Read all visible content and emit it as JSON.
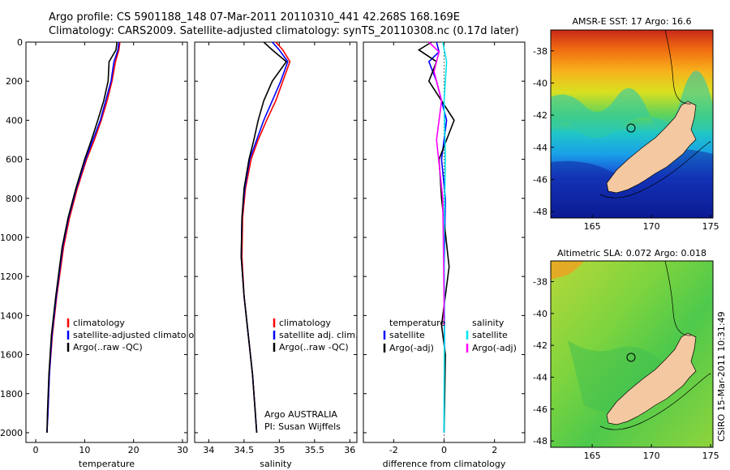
{
  "header": {
    "line1": "Argo profile: CS 5901188_148 07-Mar-2011 20110310_441 42.268S 168.169E",
    "line2": "Climatology: CARS2009. Satellite-adjusted climatology: synTS_20110308.nc (0.17d later)"
  },
  "credit": "CSIRO 15-Mar-2011 10:31:49",
  "chart_data": [
    {
      "id": "temperature",
      "type": "line",
      "xlabel": "temperature",
      "ylabel": "",
      "xlim": [
        -2,
        31
      ],
      "ylim": [
        0,
        2050
      ],
      "y_inverted": true,
      "xticks": [
        "0",
        "10",
        "20",
        "30"
      ],
      "yticks": [
        "0",
        "200",
        "400",
        "600",
        "800",
        "1000",
        "1200",
        "1400",
        "1600",
        "1800",
        "2000"
      ],
      "legend": [
        "climatology",
        "satellite-adjusted climatology",
        "Argo(..raw -QC)"
      ],
      "series": [
        {
          "name": "climatology",
          "color": "#ff0000",
          "x": [
            17.2,
            17.0,
            16.3,
            15.6,
            14.6,
            13.4,
            12.0,
            10.4,
            8.5,
            6.9,
            5.7,
            4.3,
            3.4,
            2.8,
            2.5,
            2.3
          ],
          "y": [
            0,
            40,
            100,
            200,
            300,
            400,
            500,
            600,
            750,
            900,
            1050,
            1300,
            1500,
            1700,
            1900,
            2000
          ]
        },
        {
          "name": "satellite-adjusted climatology",
          "color": "#0000ff",
          "x": [
            17.0,
            16.8,
            16.0,
            15.4,
            14.3,
            13.2,
            11.7,
            10.2,
            8.3,
            6.7,
            5.5,
            4.2,
            3.3,
            2.8,
            2.5,
            2.3
          ],
          "y": [
            0,
            40,
            100,
            200,
            300,
            400,
            500,
            600,
            750,
            900,
            1050,
            1300,
            1500,
            1700,
            1900,
            2000
          ]
        },
        {
          "name": "Argo(..raw -QC)",
          "color": "#000000",
          "x": [
            16.6,
            16.4,
            15.0,
            14.8,
            13.9,
            12.7,
            11.4,
            10.0,
            8.2,
            6.6,
            5.4,
            4.1,
            3.2,
            2.7,
            2.4,
            2.3
          ],
          "y": [
            0,
            40,
            100,
            200,
            300,
            400,
            500,
            600,
            750,
            900,
            1050,
            1300,
            1500,
            1700,
            1900,
            2000
          ]
        }
      ]
    },
    {
      "id": "salinity",
      "type": "line",
      "xlabel": "salinity",
      "ylabel": "",
      "xlim": [
        33.8,
        36.1
      ],
      "ylim": [
        0,
        2050
      ],
      "y_inverted": true,
      "xticks": [
        "34",
        "34.5",
        "35",
        "35.5",
        "36"
      ],
      "legend": [
        "climatology",
        "satellite adj. clim.",
        "Argo(..raw -QC)"
      ],
      "annotation": [
        "Argo AUSTRALIA",
        "PI: Susan Wijffels"
      ],
      "series": [
        {
          "name": "climatology",
          "color": "#ff0000",
          "x": [
            34.95,
            35.05,
            35.15,
            35.05,
            34.95,
            34.82,
            34.7,
            34.6,
            34.52,
            34.48,
            34.47,
            34.5,
            34.56,
            34.62,
            34.66,
            34.68
          ],
          "y": [
            0,
            40,
            100,
            200,
            300,
            400,
            500,
            600,
            750,
            900,
            1100,
            1300,
            1500,
            1700,
            1900,
            2000
          ]
        },
        {
          "name": "satellite adj. clim.",
          "color": "#0000ff",
          "x": [
            34.9,
            35.0,
            35.12,
            35.02,
            34.9,
            34.78,
            34.68,
            34.58,
            34.51,
            34.47,
            34.46,
            34.5,
            34.56,
            34.62,
            34.66,
            34.68
          ],
          "y": [
            0,
            40,
            100,
            200,
            300,
            400,
            500,
            600,
            750,
            900,
            1100,
            1300,
            1500,
            1700,
            1900,
            2000
          ]
        },
        {
          "name": "Argo(..raw -QC)",
          "color": "#000000",
          "x": [
            34.78,
            34.9,
            35.1,
            34.9,
            34.78,
            34.7,
            34.64,
            34.57,
            34.5,
            34.47,
            34.46,
            34.5,
            34.56,
            34.62,
            34.66,
            34.68
          ],
          "y": [
            0,
            40,
            100,
            200,
            300,
            400,
            500,
            600,
            750,
            900,
            1100,
            1300,
            1500,
            1700,
            1900,
            2000
          ]
        }
      ]
    },
    {
      "id": "difference",
      "type": "line",
      "xlabel": "difference from climatology",
      "ylabel": "",
      "xlim": [
        -3.2,
        3.2
      ],
      "ylim": [
        0,
        2050
      ],
      "y_inverted": true,
      "xticks": [
        "-2",
        "0",
        "2"
      ],
      "legend_left_title": "temperature",
      "legend_right_title": "salinity",
      "legend": [
        "satellite",
        "Argo(-adj)",
        "satellite",
        "Argo(-adj)"
      ],
      "series": [
        {
          "name": "satellite",
          "group": "temperature",
          "color": "#0000ff",
          "x": [
            -0.3,
            -0.2,
            -0.6,
            -0.3,
            0.1,
            -0.1,
            0.05,
            0.0,
            0.02,
            0.0
          ],
          "y": [
            0,
            50,
            100,
            200,
            400,
            600,
            800,
            1200,
            1600,
            2000
          ]
        },
        {
          "name": "Argo(-adj)",
          "group": "temperature",
          "color": "#000000",
          "x": [
            -0.5,
            -1.0,
            -0.3,
            -0.6,
            0.4,
            -0.2,
            -0.1,
            0.2,
            -0.1,
            0.05,
            0.0
          ],
          "y": [
            0,
            40,
            100,
            200,
            400,
            600,
            800,
            1150,
            1450,
            1600,
            2000
          ]
        },
        {
          "name": "satellite",
          "group": "salinity",
          "color": "#00e5ee",
          "x": [
            -0.05,
            0.1,
            0.0,
            0.05,
            0.0,
            0.02,
            0.0,
            0.0
          ],
          "y": [
            0,
            100,
            300,
            600,
            1000,
            1400,
            1800,
            2000
          ]
        },
        {
          "name": "Argo(-adj)",
          "group": "salinity",
          "color": "#ff00ff",
          "x": [
            -0.6,
            -0.2,
            -0.4,
            -0.1,
            -0.3,
            -0.05,
            0.0,
            0.0
          ],
          "y": [
            0,
            50,
            150,
            300,
            500,
            800,
            1300,
            1450
          ]
        }
      ]
    },
    {
      "id": "sst_map",
      "type": "heatmap",
      "title": "AMSR-E SST: 17 Argo: 16.6",
      "xticks": [
        "165",
        "170",
        "175"
      ],
      "yticks": [
        "-38",
        "-40",
        "-42",
        "-44",
        "-46",
        "-48"
      ],
      "xlim": [
        161.5,
        175.2
      ],
      "ylim": [
        -48.4,
        -36.7
      ],
      "argo_position": {
        "lon": 168.169,
        "lat": -42.268
      }
    },
    {
      "id": "sla_map",
      "type": "heatmap",
      "title": "Altimetric SLA: 0.072 Argo: 0.018",
      "xticks": [
        "165",
        "170",
        "175"
      ],
      "yticks": [
        "-38",
        "-40",
        "-42",
        "-44",
        "-46",
        "-48"
      ],
      "xlim": [
        161.5,
        175.2
      ],
      "ylim": [
        -48.4,
        -36.7
      ],
      "argo_position": {
        "lon": 168.169,
        "lat": -42.268
      }
    }
  ]
}
